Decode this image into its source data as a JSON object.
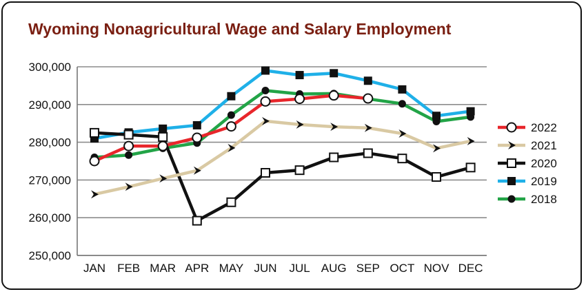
{
  "chart_data": {
    "type": "line",
    "title": "Wyoming Nonagricultural Wage and Salary Employment",
    "xlabel": "",
    "ylabel": "",
    "categories": [
      "JAN",
      "FEB",
      "MAR",
      "APR",
      "MAY",
      "JUN",
      "JUL",
      "AUG",
      "SEP",
      "OCT",
      "NOV",
      "DEC"
    ],
    "ylim": [
      250000,
      300000
    ],
    "yticks": [
      250000,
      260000,
      270000,
      280000,
      290000,
      300000
    ],
    "ytick_labels": [
      "250,000",
      "260,000",
      "270,000",
      "280,000",
      "290,000",
      "300,000"
    ],
    "grid": true,
    "legend_position": "right",
    "series": [
      {
        "name": "2022",
        "color": "#e8262b",
        "marker": "open-circle",
        "values": [
          275000,
          279000,
          279000,
          281200,
          284200,
          290800,
          291500,
          292400,
          291600,
          null,
          null,
          null
        ]
      },
      {
        "name": "2021",
        "color": "#d9c9a3",
        "marker": "arrowhead",
        "values": [
          266200,
          268200,
          270400,
          272500,
          278500,
          285600,
          284700,
          284100,
          283800,
          282300,
          278400,
          280300
        ]
      },
      {
        "name": "2020",
        "color": "#111111",
        "marker": "open-square",
        "values": [
          282500,
          282000,
          281400,
          259200,
          264100,
          271900,
          272600,
          276000,
          277100,
          275700,
          270800,
          273300
        ]
      },
      {
        "name": "2019",
        "color": "#1fb0e8",
        "marker": "filled-square",
        "values": [
          281000,
          282600,
          283600,
          284500,
          292200,
          299000,
          297800,
          298300,
          296300,
          294000,
          287000,
          288200
        ]
      },
      {
        "name": "2018",
        "color": "#22a447",
        "marker": "filled-circle",
        "values": [
          276000,
          276600,
          278400,
          279800,
          287200,
          293700,
          292800,
          292900,
          291500,
          290200,
          285500,
          286700
        ]
      }
    ]
  }
}
